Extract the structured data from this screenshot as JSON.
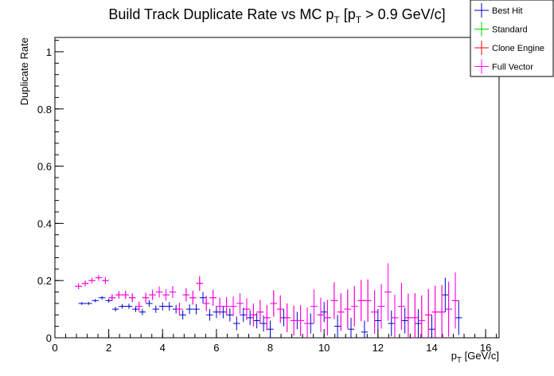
{
  "chart_data": {
    "type": "scatter",
    "title_parts": {
      "main": "Build Track Duplicate Rate vs MC p",
      "sub1": "T",
      "mid": " [p",
      "sub2": "T",
      "end": " > 0.9 GeV/c]"
    },
    "xlabel": {
      "main": "p",
      "sub": "T",
      "unit": " [GeV/c]"
    },
    "ylabel": "Duplicate Rate",
    "xlim": [
      0,
      16.5
    ],
    "ylim": [
      0,
      1.05
    ],
    "xticks": [
      0,
      2,
      4,
      6,
      8,
      10,
      12,
      14,
      16
    ],
    "xtick_labels": [
      "0",
      "2",
      "4",
      "6",
      "8",
      "10",
      "12",
      "14",
      "16"
    ],
    "yticks": [
      0,
      0.2,
      0.4,
      0.6,
      0.8,
      1
    ],
    "ytick_labels": [
      "0",
      "0.2",
      "0.4",
      "0.6",
      "0.8",
      "1"
    ],
    "bin_width": 0.25,
    "legend": {
      "placement": "top-right",
      "entries": [
        {
          "name": "Best Hit",
          "color": "#0000cc"
        },
        {
          "name": "Standard",
          "color": "#00cc00"
        },
        {
          "name": "Clone Engine",
          "color": "#ff0000"
        },
        {
          "name": "Full Vector",
          "color": "#ff00ff"
        }
      ]
    },
    "series": [
      {
        "name": "Best Hit",
        "color": "#0000cc",
        "x": [
          1.0,
          1.25,
          1.5,
          1.75,
          2.0,
          2.25,
          2.5,
          2.75,
          3.0,
          3.25,
          3.5,
          3.75,
          4.0,
          4.25,
          4.5,
          4.75,
          5.0,
          5.25,
          5.5,
          5.75,
          6.0,
          6.25,
          6.5,
          6.75,
          7.0,
          7.25,
          7.5,
          7.75,
          8.0,
          8.5,
          9.0,
          9.5,
          10.0,
          10.5,
          11.0,
          11.5,
          12.0,
          12.5,
          13.0,
          13.5,
          14.0,
          14.5,
          15.0
        ],
        "y": [
          0.12,
          0.12,
          0.13,
          0.14,
          0.13,
          0.1,
          0.11,
          0.11,
          0.1,
          0.09,
          0.12,
          0.1,
          0.11,
          0.11,
          0.1,
          0.08,
          0.1,
          0.1,
          0.14,
          0.08,
          0.09,
          0.09,
          0.08,
          0.05,
          0.08,
          0.07,
          0.06,
          0.05,
          0.03,
          0.07,
          0.06,
          0.05,
          0.09,
          0.04,
          0.03,
          0.02,
          0.06,
          0.05,
          0.06,
          0.05,
          0.03,
          0.15,
          0.07
        ],
        "err": [
          0.005,
          0.005,
          0.006,
          0.006,
          0.007,
          0.008,
          0.008,
          0.009,
          0.01,
          0.011,
          0.012,
          0.013,
          0.014,
          0.015,
          0.015,
          0.016,
          0.017,
          0.018,
          0.02,
          0.02,
          0.021,
          0.022,
          0.023,
          0.024,
          0.025,
          0.026,
          0.027,
          0.028,
          0.03,
          0.03,
          0.03,
          0.035,
          0.035,
          0.04,
          0.04,
          0.04,
          0.04,
          0.045,
          0.045,
          0.05,
          0.05,
          0.06,
          0.06
        ]
      },
      {
        "name": "Clone Engine",
        "color": "#ff0000",
        "x": [
          0.875,
          1.125,
          1.375,
          1.625,
          1.875,
          2.125,
          2.375,
          2.625,
          2.875,
          3.125,
          3.375,
          3.625,
          3.875,
          4.125,
          4.375,
          4.625,
          4.875,
          5.125,
          5.375,
          5.625,
          5.875,
          6.125,
          6.375,
          6.625,
          6.875,
          7.125,
          7.375,
          7.625,
          7.875,
          8.125,
          8.375,
          8.625,
          8.875,
          9.125,
          9.375,
          9.625,
          9.875,
          10.125,
          10.375,
          10.625,
          10.875,
          11.125,
          11.375,
          11.625,
          11.875,
          12.125,
          12.375,
          12.625,
          12.875,
          13.125,
          13.375,
          13.625,
          13.875,
          14.125,
          14.375,
          14.625,
          14.875
        ],
        "y": [
          0.18,
          0.19,
          0.2,
          0.21,
          0.2,
          0.14,
          0.15,
          0.15,
          0.14,
          0.11,
          0.14,
          0.15,
          0.16,
          0.15,
          0.16,
          0.1,
          0.15,
          0.14,
          0.19,
          0.12,
          0.14,
          0.11,
          0.11,
          0.11,
          0.12,
          0.1,
          0.08,
          0.09,
          0.07,
          0.12,
          0.1,
          0.07,
          0.06,
          0.06,
          0.05,
          0.11,
          0.08,
          0.07,
          0.13,
          0.09,
          0.1,
          0.11,
          0.13,
          0.13,
          0.09,
          0.11,
          0.16,
          0.07,
          0.11,
          0.07,
          0.07,
          0.06,
          0.08,
          0.09,
          0.09,
          0.1,
          0.13
        ],
        "err": [
          0.01,
          0.01,
          0.01,
          0.01,
          0.012,
          0.012,
          0.013,
          0.014,
          0.015,
          0.016,
          0.017,
          0.018,
          0.019,
          0.02,
          0.021,
          0.022,
          0.023,
          0.024,
          0.025,
          0.026,
          0.028,
          0.03,
          0.032,
          0.034,
          0.036,
          0.038,
          0.04,
          0.042,
          0.044,
          0.046,
          0.048,
          0.05,
          0.052,
          0.054,
          0.056,
          0.058,
          0.06,
          0.062,
          0.064,
          0.066,
          0.068,
          0.07,
          0.072,
          0.074,
          0.076,
          0.078,
          0.1,
          0.08,
          0.082,
          0.084,
          0.086,
          0.088,
          0.09,
          0.092,
          0.094,
          0.096,
          0.098
        ]
      },
      {
        "name": "Full Vector",
        "color": "#ff00ff",
        "x": [
          0.875,
          1.125,
          1.375,
          1.625,
          1.875,
          2.125,
          2.375,
          2.625,
          2.875,
          3.125,
          3.375,
          3.625,
          3.875,
          4.125,
          4.375,
          4.625,
          4.875,
          5.125,
          5.375,
          5.625,
          5.875,
          6.125,
          6.375,
          6.625,
          6.875,
          7.125,
          7.375,
          7.625,
          7.875,
          8.125,
          8.375,
          8.625,
          8.875,
          9.125,
          9.375,
          9.625,
          9.875,
          10.125,
          10.375,
          10.625,
          10.875,
          11.125,
          11.375,
          11.625,
          11.875,
          12.125,
          12.375,
          12.625,
          12.875,
          13.125,
          13.375,
          13.625,
          13.875,
          14.125,
          14.375,
          14.625,
          14.875
        ],
        "y": [
          0.18,
          0.19,
          0.2,
          0.21,
          0.2,
          0.14,
          0.15,
          0.15,
          0.14,
          0.11,
          0.14,
          0.15,
          0.16,
          0.15,
          0.16,
          0.1,
          0.15,
          0.14,
          0.19,
          0.12,
          0.14,
          0.11,
          0.11,
          0.11,
          0.12,
          0.1,
          0.08,
          0.09,
          0.07,
          0.12,
          0.1,
          0.07,
          0.06,
          0.06,
          0.05,
          0.11,
          0.08,
          0.07,
          0.13,
          0.09,
          0.1,
          0.11,
          0.13,
          0.13,
          0.09,
          0.11,
          0.16,
          0.07,
          0.11,
          0.07,
          0.07,
          0.06,
          0.08,
          0.09,
          0.09,
          0.1,
          0.13
        ],
        "err": [
          0.01,
          0.01,
          0.01,
          0.01,
          0.012,
          0.012,
          0.013,
          0.014,
          0.015,
          0.016,
          0.017,
          0.018,
          0.019,
          0.02,
          0.021,
          0.022,
          0.023,
          0.024,
          0.025,
          0.026,
          0.028,
          0.03,
          0.032,
          0.034,
          0.036,
          0.038,
          0.04,
          0.042,
          0.044,
          0.046,
          0.048,
          0.05,
          0.052,
          0.054,
          0.056,
          0.058,
          0.06,
          0.062,
          0.064,
          0.066,
          0.068,
          0.07,
          0.072,
          0.074,
          0.076,
          0.078,
          0.1,
          0.08,
          0.082,
          0.084,
          0.086,
          0.088,
          0.09,
          0.092,
          0.094,
          0.096,
          0.098
        ]
      }
    ]
  }
}
